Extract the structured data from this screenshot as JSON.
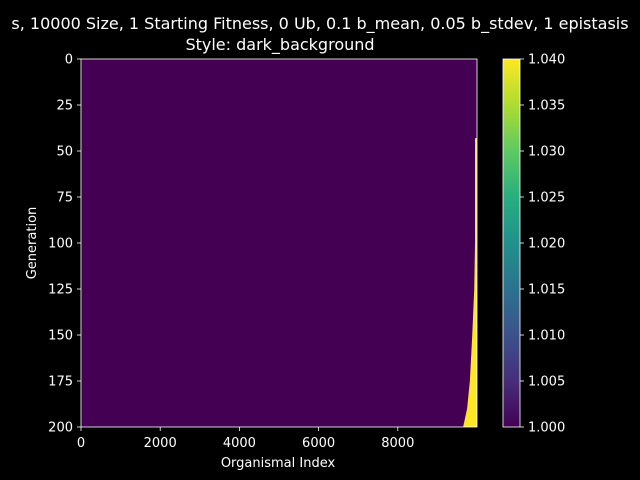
{
  "chart_data": {
    "type": "heatmap",
    "title_line1": "s, 10000 Size, 1 Starting Fitness, 0 Ub, 0.1 b_mean, 0.05 b_stdev, 1 epistasis",
    "title_line2": "Style: dark_background",
    "xlabel": "Organismal Index",
    "ylabel": "Generation",
    "xlim": [
      0,
      10000
    ],
    "ylim": [
      0,
      200
    ],
    "y_inverted": true,
    "xticks": [
      0,
      2000,
      4000,
      6000,
      8000
    ],
    "yticks": [
      0,
      25,
      50,
      75,
      100,
      125,
      150,
      175,
      200
    ],
    "colorbar": {
      "min": 1.0,
      "max": 1.04,
      "ticks": [
        "1.000",
        "1.005",
        "1.010",
        "1.015",
        "1.020",
        "1.025",
        "1.030",
        "1.035",
        "1.040"
      ],
      "colormap": "viridis"
    },
    "background_value": 1.0,
    "high_value": 1.04,
    "high_value_region": [
      {
        "generation": 43,
        "from_index": 9950
      },
      {
        "generation": 100,
        "from_index": 9950
      },
      {
        "generation": 125,
        "from_index": 9930
      },
      {
        "generation": 150,
        "from_index": 9880
      },
      {
        "generation": 175,
        "from_index": 9820
      },
      {
        "generation": 190,
        "from_index": 9750
      },
      {
        "generation": 200,
        "from_index": 9650
      }
    ],
    "colors": {
      "background": "#000000",
      "low": "#440154",
      "high": "#fde725"
    }
  }
}
